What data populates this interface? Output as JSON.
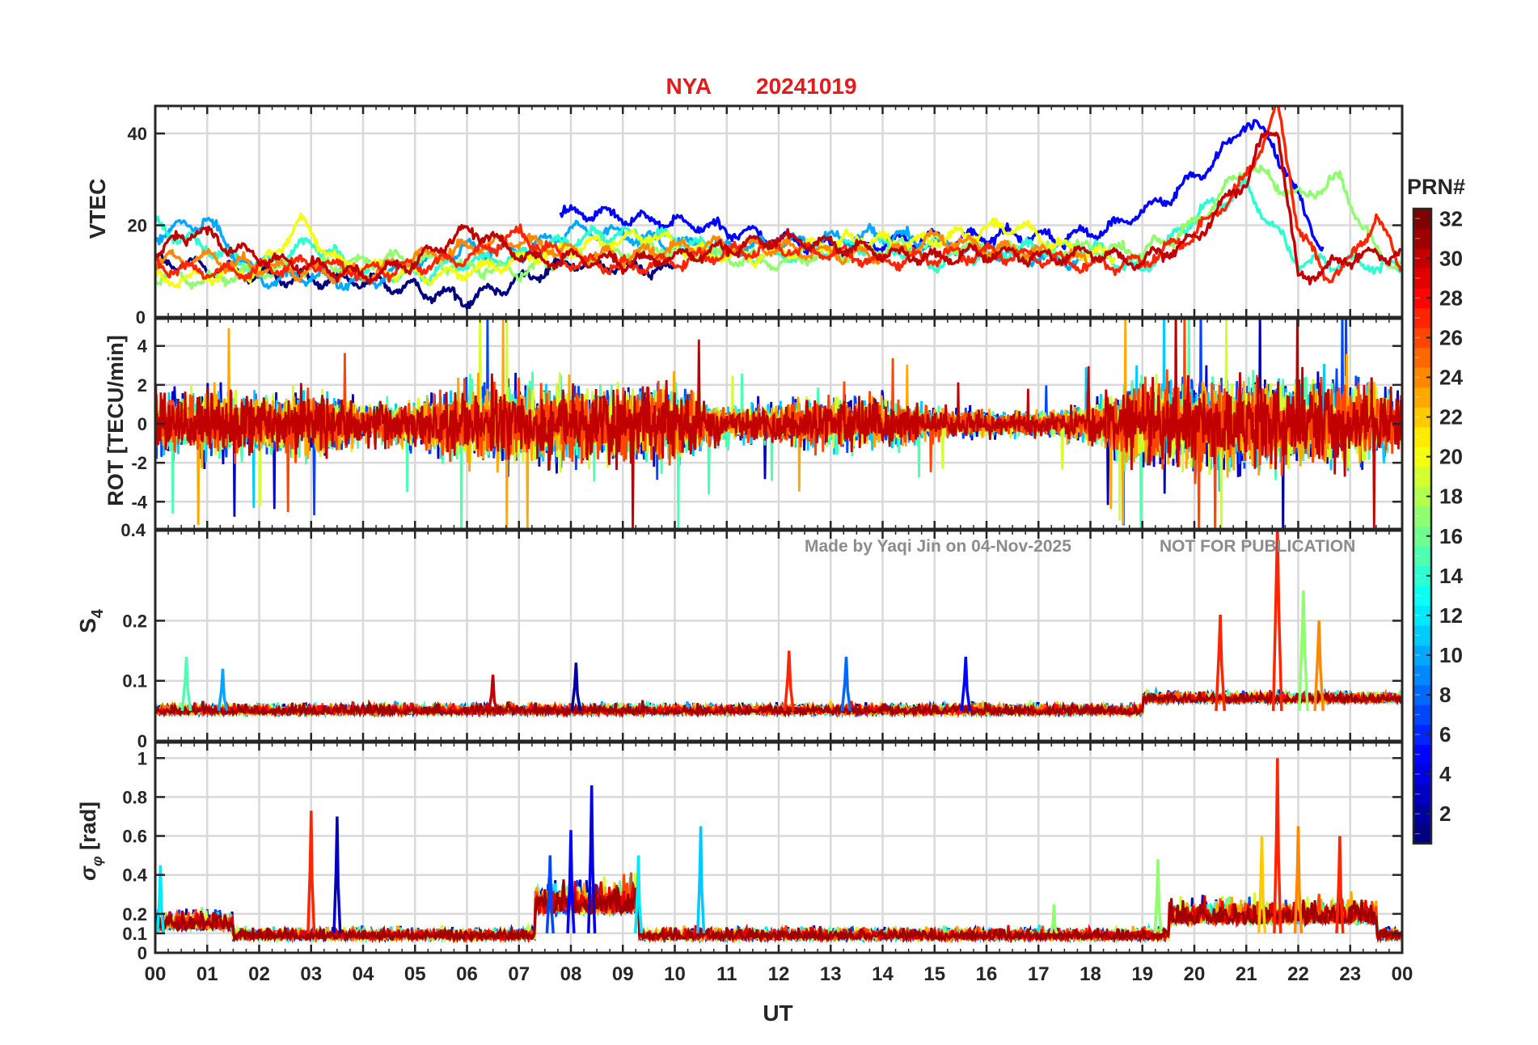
{
  "title": {
    "station": "NYA",
    "date": "20241019",
    "color": "#e8191c"
  },
  "watermark": {
    "made_by": "Made by Yaqi Jin on 04-Nov-2025",
    "notice": "NOT FOR PUBLICATION"
  },
  "colorbar": {
    "label": "PRN#",
    "ticks": [
      "2",
      "4",
      "6",
      "8",
      "10",
      "12",
      "14",
      "16",
      "18",
      "20",
      "22",
      "24",
      "26",
      "28",
      "30",
      "32"
    ],
    "range": [
      1,
      32
    ],
    "colormap": "jet-like (dark blue → blue → cyan → green → yellow → orange → red → dark red)"
  },
  "x_axis": {
    "label": "UT",
    "ticks": [
      "00",
      "01",
      "02",
      "03",
      "04",
      "05",
      "06",
      "07",
      "08",
      "09",
      "10",
      "11",
      "12",
      "13",
      "14",
      "15",
      "16",
      "17",
      "18",
      "19",
      "20",
      "21",
      "22",
      "23",
      "00"
    ],
    "range_hours": [
      0,
      24
    ]
  },
  "chart_data": [
    {
      "type": "line",
      "panel": "vtec",
      "ylabel": "VTEC",
      "ylim": [
        0,
        46
      ],
      "yticks": [
        "20",
        "40"
      ],
      "grid": true,
      "series_note": "one line per satellite PRN, colored by PRN",
      "series": [
        {
          "prn": 1,
          "x": [
            0.0,
            1.0,
            2.0,
            3.0,
            4.0,
            5.0,
            6.0,
            7.0,
            8.0,
            9.0,
            10.0
          ],
          "y": [
            12,
            11,
            9,
            8,
            8,
            6,
            4,
            8,
            12,
            11,
            10
          ]
        },
        {
          "prn": 5,
          "x": [
            7.8,
            8.5,
            9.5,
            10.5,
            11.5,
            12.5,
            13.5,
            14.5,
            15.5,
            16.5,
            17.5,
            18.5,
            19.5,
            20.5,
            21.0,
            21.5,
            22.5
          ],
          "y": [
            22,
            23,
            21,
            20,
            18,
            16,
            15,
            17,
            17,
            18,
            17,
            20,
            26,
            35,
            43,
            38,
            14
          ]
        },
        {
          "prn": 10,
          "x": [
            0.0,
            1.0,
            2.0,
            3.0,
            4.0,
            5.0,
            6.0,
            7.0,
            8.0,
            9.0,
            10.0,
            11.0,
            12.0,
            13.0,
            14.0,
            15.0,
            16.0,
            17.0,
            18.0
          ],
          "y": [
            18,
            21,
            8,
            9,
            7,
            12,
            15,
            14,
            19,
            18,
            16,
            15,
            16,
            17,
            18,
            16,
            14,
            13,
            12
          ]
        },
        {
          "prn": 14,
          "x": [
            0.0,
            1.0,
            2.0,
            3.0,
            4.0,
            5.0,
            6.0,
            7.0,
            8.0,
            9.0,
            10.0,
            11.0,
            12.0,
            13.0,
            14.0,
            15.0,
            16.0,
            17.0,
            18.0,
            19.0,
            20.0,
            21.0,
            22.0,
            23.0,
            24.0
          ],
          "y": [
            20,
            15,
            11,
            16,
            10,
            9,
            12,
            13,
            17,
            18,
            17,
            14,
            13,
            15,
            16,
            12,
            14,
            15,
            15,
            10,
            22,
            28,
            12,
            12,
            10
          ]
        },
        {
          "prn": 17,
          "x": [
            0.0,
            1.0,
            2.0,
            3.0,
            4.0,
            5.0,
            6.0,
            7.0,
            8.0,
            9.0,
            10.0,
            11.0,
            12.0,
            13.0,
            14.0,
            15.0,
            16.0,
            17.0,
            18.0,
            19.0,
            20.0,
            21.0,
            22.0,
            22.8,
            23.5,
            24.0
          ],
          "y": [
            9,
            8,
            10,
            11,
            12,
            13,
            11,
            10,
            13,
            14,
            15,
            13,
            12,
            14,
            15,
            16,
            15,
            14,
            15,
            14,
            20,
            33,
            26,
            30,
            14,
            11
          ]
        },
        {
          "prn": 20,
          "x": [
            0.0,
            1.0,
            2.0,
            2.8,
            3.5,
            4.5,
            5.5,
            6.5,
            7.5,
            8.5,
            9.5,
            10.5,
            11.5,
            12.5,
            13.5,
            14.5,
            15.5,
            16.5,
            17.5,
            18.5
          ],
          "y": [
            8,
            9,
            10,
            21,
            12,
            10,
            9,
            11,
            14,
            16,
            18,
            14,
            13,
            15,
            17,
            16,
            18,
            20,
            15,
            13
          ]
        },
        {
          "prn": 24,
          "x": [
            0.0,
            1.0,
            2.0,
            3.0,
            4.0,
            5.0,
            6.0,
            7.0,
            8.0,
            9.0,
            10.0,
            11.0,
            12.0,
            13.0,
            14.0,
            15.0,
            16.0,
            17.0,
            18.0
          ],
          "y": [
            12,
            13,
            11,
            10,
            9,
            13,
            15,
            17,
            14,
            13,
            15,
            16,
            15,
            14,
            13,
            17,
            15,
            14,
            12
          ]
        },
        {
          "prn": 27,
          "x": [
            0.0,
            1.0,
            2.0,
            3.0,
            4.0,
            5.0,
            6.0,
            7.0,
            8.0,
            9.0,
            10.0,
            11.0,
            12.0,
            13.0,
            14.0,
            15.0,
            16.0,
            17.0,
            18.0,
            19.0,
            20.0,
            21.0,
            21.6,
            22.0,
            22.5,
            23.0,
            23.5,
            24.0
          ],
          "y": [
            11,
            10,
            10,
            12,
            10,
            11,
            13,
            18,
            12,
            11,
            12,
            14,
            15,
            14,
            12,
            13,
            14,
            13,
            11,
            12,
            18,
            30,
            46,
            20,
            9,
            12,
            22,
            10
          ]
        },
        {
          "prn": 30,
          "x": [
            0.0,
            0.8,
            1.5,
            2.0,
            3.0,
            4.0,
            5.0,
            6.0,
            6.5,
            7.0,
            7.5,
            8.0,
            9.0,
            10.0,
            11.0,
            12.0,
            13.0,
            14.0,
            15.0,
            16.0,
            17.0,
            18.0,
            19.0,
            20.0,
            20.5,
            21.0,
            21.3,
            21.6,
            22.0,
            23.0,
            24.0
          ],
          "y": [
            14,
            19,
            15,
            13,
            11,
            9,
            12,
            19,
            17,
            14,
            12,
            13,
            12,
            13,
            15,
            17,
            16,
            14,
            13,
            14,
            13,
            14,
            12,
            17,
            24,
            30,
            38,
            42,
            8,
            13,
            14
          ]
        }
      ]
    },
    {
      "type": "line",
      "panel": "rot",
      "ylabel": "ROT [TECU/min]",
      "ylim": [
        -5.4,
        5.4
      ],
      "yticks": [
        "-4",
        "-2",
        "0",
        "2",
        "4"
      ],
      "edge_labels": {
        "top": "0",
        "bottom": "0.4"
      },
      "grid": true,
      "series_note": "rate of TEC; high-frequency fluctuations; amplitude envelope per UT hour",
      "envelope": {
        "x": [
          0,
          1,
          2,
          3,
          4,
          5,
          6,
          7,
          8,
          9,
          10,
          11,
          12,
          13,
          14,
          15,
          16,
          17,
          18,
          19,
          20,
          21,
          22,
          23,
          24
        ],
        "amplitude": [
          3.5,
          4.5,
          3.5,
          4.0,
          2.5,
          3.0,
          5.0,
          4.5,
          5.0,
          4.5,
          5.0,
          2.0,
          2.5,
          3.5,
          3.0,
          2.0,
          1.5,
          1.5,
          2.5,
          5.4,
          5.4,
          5.4,
          5.4,
          5.4,
          3.5
        ]
      }
    },
    {
      "type": "line",
      "panel": "s4",
      "ylabel": "S4",
      "ylim": [
        0,
        0.35
      ],
      "yticks": [
        "0",
        "0.1",
        "0.2"
      ],
      "grid": true,
      "series_note": "amplitude scintillation index; baseline ~0.05 with spikes",
      "peaks": [
        {
          "x": 0.6,
          "y": 0.14
        },
        {
          "x": 1.3,
          "y": 0.12
        },
        {
          "x": 6.5,
          "y": 0.11
        },
        {
          "x": 8.1,
          "y": 0.13
        },
        {
          "x": 12.2,
          "y": 0.15
        },
        {
          "x": 13.3,
          "y": 0.14
        },
        {
          "x": 15.6,
          "y": 0.14
        },
        {
          "x": 20.5,
          "y": 0.21
        },
        {
          "x": 21.6,
          "y": 0.36
        },
        {
          "x": 22.1,
          "y": 0.25
        },
        {
          "x": 22.4,
          "y": 0.2
        }
      ]
    },
    {
      "type": "line",
      "panel": "sigma_phi",
      "ylabel": "σφ [rad]",
      "ylim": [
        0,
        1.08
      ],
      "yticks": [
        "0",
        "0.1",
        "0.2",
        "0.4",
        "0.6",
        "0.8",
        "1"
      ],
      "grid": true,
      "series_note": "phase scintillation index; baseline ~0.08 with bursts",
      "peaks": [
        {
          "x": 0.1,
          "y": 0.45
        },
        {
          "x": 3.0,
          "y": 0.73
        },
        {
          "x": 3.5,
          "y": 0.7
        },
        {
          "x": 7.6,
          "y": 0.5
        },
        {
          "x": 8.0,
          "y": 0.63
        },
        {
          "x": 8.4,
          "y": 0.86
        },
        {
          "x": 9.3,
          "y": 0.5
        },
        {
          "x": 10.5,
          "y": 0.65
        },
        {
          "x": 17.3,
          "y": 0.25
        },
        {
          "x": 19.3,
          "y": 0.48
        },
        {
          "x": 21.3,
          "y": 0.6
        },
        {
          "x": 21.6,
          "y": 1.0
        },
        {
          "x": 22.0,
          "y": 0.65
        },
        {
          "x": 22.8,
          "y": 0.6
        }
      ]
    }
  ]
}
